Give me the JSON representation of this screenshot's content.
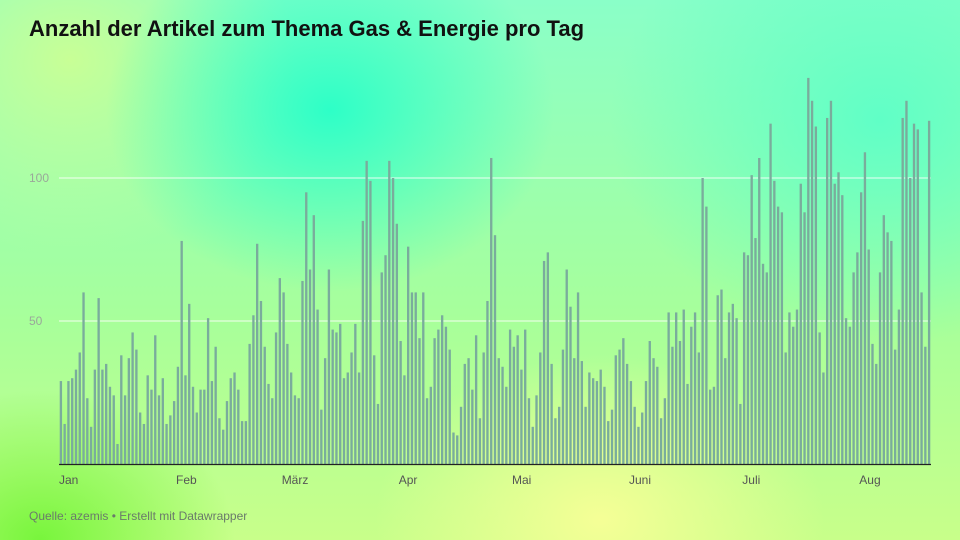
{
  "title": "Anzahl der Artikel zum Thema Gas & Energie pro Tag",
  "source": "Quelle: azemis • Erstellt mit Datawrapper",
  "colors": {
    "bar": "#7aac9c",
    "gridline": "#ffffff",
    "axis": "#222222"
  },
  "chart_data": {
    "type": "bar",
    "title": "Anzahl der Artikel zum Thema Gas & Energie pro Tag",
    "xlabel": "",
    "ylabel": "",
    "ylim": [
      0,
      135
    ],
    "yticks": [
      50,
      100
    ],
    "grid": true,
    "xticks": [
      {
        "label": "Jan",
        "day": 1
      },
      {
        "label": "Feb",
        "day": 32
      },
      {
        "label": "März",
        "day": 60
      },
      {
        "label": "Apr",
        "day": 91
      },
      {
        "label": "Mai",
        "day": 121
      },
      {
        "label": "Juni",
        "day": 152
      },
      {
        "label": "Juli",
        "day": 182
      },
      {
        "label": "Aug",
        "day": 213
      }
    ],
    "values": [
      29,
      14,
      29,
      30,
      33,
      39,
      60,
      23,
      13,
      33,
      58,
      33,
      35,
      27,
      24,
      7,
      38,
      24,
      37,
      46,
      40,
      18,
      14,
      31,
      26,
      45,
      24,
      30,
      14,
      17,
      22,
      34,
      78,
      31,
      56,
      27,
      18,
      26,
      26,
      51,
      29,
      41,
      16,
      12,
      22,
      30,
      32,
      26,
      15,
      15,
      42,
      52,
      77,
      57,
      41,
      28,
      23,
      46,
      65,
      60,
      42,
      32,
      24,
      23,
      64,
      95,
      68,
      87,
      54,
      19,
      37,
      68,
      47,
      46,
      49,
      30,
      32,
      39,
      49,
      32,
      85,
      106,
      99,
      38,
      21,
      67,
      73,
      106,
      100,
      84,
      43,
      31,
      76,
      60,
      60,
      44,
      60,
      23,
      27,
      44,
      47,
      52,
      48,
      40,
      11,
      10,
      20,
      35,
      37,
      26,
      45,
      16,
      39,
      57,
      107,
      80,
      37,
      34,
      27,
      47,
      41,
      45,
      33,
      47,
      23,
      13,
      24,
      39,
      71,
      74,
      35,
      16,
      20,
      40,
      68,
      55,
      37,
      60,
      36,
      20,
      32,
      30,
      29,
      33,
      27,
      15,
      19,
      38,
      40,
      44,
      35,
      29,
      20,
      13,
      18,
      29,
      43,
      37,
      34,
      16,
      23,
      53,
      41,
      53,
      43,
      54,
      28,
      48,
      53,
      39,
      100,
      90,
      26,
      27,
      59,
      61,
      37,
      53,
      56,
      51,
      21,
      74,
      73,
      101,
      79,
      107,
      70,
      67,
      119,
      99,
      90,
      88,
      39,
      53,
      48,
      54,
      98,
      88,
      135,
      127,
      118,
      46,
      32,
      121,
      127,
      98,
      102,
      94,
      51,
      48,
      67,
      74,
      95,
      109,
      75,
      42,
      35,
      67,
      87,
      81,
      78,
      40,
      54,
      121,
      127,
      100,
      119,
      117,
      60,
      41,
      120
    ]
  }
}
